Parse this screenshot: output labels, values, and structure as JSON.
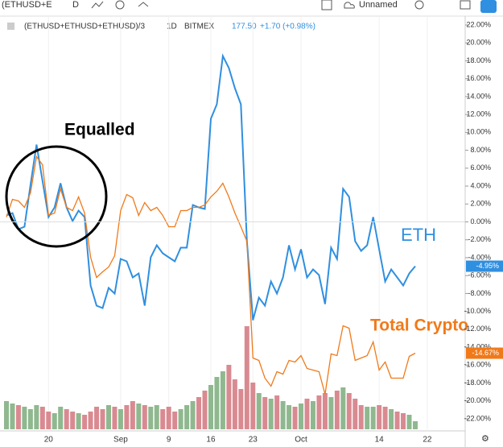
{
  "toolbar": {
    "symbol": "(ETHUSD+E",
    "interval": "D",
    "layout": "Unnamed"
  },
  "chart_data": {
    "type": "line",
    "legend_info": {
      "symbol": "(ETHUSD+ETHUSD+ETHUSD)/3",
      "interval": "1D",
      "exchange": "BITMEX",
      "price": "177.50",
      "change": "+1.70 (+0.98%)"
    },
    "annotations": {
      "circle_label": "Equalled",
      "eth_label": "ETH",
      "total_label": "Total Crypto"
    },
    "categories": [
      null,
      null,
      null,
      null,
      null,
      null,
      null,
      "20",
      null,
      null,
      null,
      null,
      null,
      null,
      null,
      null,
      null,
      null,
      null,
      "Sep",
      null,
      null,
      null,
      null,
      null,
      null,
      null,
      "9",
      null,
      null,
      null,
      null,
      null,
      null,
      "16",
      null,
      null,
      null,
      null,
      null,
      null,
      "23",
      null,
      null,
      null,
      null,
      null,
      null,
      null,
      "Oct",
      null,
      null,
      null,
      null,
      null,
      null,
      null,
      null,
      null,
      null,
      null,
      null,
      "14",
      null,
      null,
      null,
      null,
      null,
      null,
      null,
      "22"
    ],
    "series": [
      {
        "name": "ETH",
        "color": "#2f8fe0",
        "last_label": "-4.95%",
        "values": [
          0.72,
          0.99,
          -0.81,
          -0.54,
          4.14,
          8.64,
          4.59,
          0.54,
          1.62,
          4.32,
          1.62,
          0.09,
          1.26,
          0.54,
          -7.11,
          -9.36,
          -9.63,
          -7.38,
          -8.01,
          -4.14,
          -4.41,
          -6.21,
          -5.76,
          -9.36,
          -3.96,
          -2.61,
          -3.51,
          -3.96,
          -4.41,
          -2.88,
          -2.88,
          1.89,
          1.62,
          1.44,
          11.52,
          13.14,
          18.54,
          17.19,
          14.94,
          13.14,
          -2.16,
          -10.98,
          -8.46,
          -9.36,
          -6.66,
          -8.01,
          -6.21,
          -2.61,
          -5.31,
          -3.06,
          -6.21,
          -5.31,
          -5.94,
          -9.18,
          -2.88,
          -4.14,
          3.69,
          2.79,
          -2.16,
          -3.24,
          -2.61,
          0.54,
          -3.06,
          -6.66,
          -5.31,
          -6.21,
          -7.11,
          -5.76,
          -4.95,
          null,
          null
        ]
      },
      {
        "name": "Total Crypto",
        "color": "#f07a1a",
        "last_label": "-14.67%",
        "values": [
          0.54,
          2.52,
          2.34,
          1.62,
          3.24,
          7.29,
          6.39,
          0.72,
          0.99,
          3.69,
          1.62,
          1.26,
          2.79,
          0.99,
          -3.96,
          -6.21,
          -5.58,
          -5.04,
          -3.78,
          1.26,
          3.06,
          2.7,
          0.72,
          2.16,
          1.26,
          1.62,
          0.72,
          -0.54,
          -0.54,
          1.26,
          1.26,
          1.62,
          1.62,
          1.89,
          2.79,
          3.42,
          4.32,
          2.79,
          0.99,
          -0.54,
          -2.16,
          -15.21,
          -15.48,
          -17.46,
          -18.36,
          -16.74,
          -17.01,
          -15.48,
          -15.66,
          -14.94,
          -16.38,
          -16.56,
          -16.74,
          -19.26,
          -14.76,
          -14.94,
          -11.61,
          -11.88,
          -15.48,
          -15.21,
          -14.94,
          -13.41,
          -16.56,
          -15.66,
          -17.46,
          -17.46,
          -17.46,
          -15.03,
          -14.67,
          null,
          null
        ]
      }
    ],
    "volume": [
      35,
      32,
      30,
      28,
      25,
      30,
      28,
      22,
      20,
      28,
      25,
      22,
      20,
      18,
      22,
      28,
      25,
      30,
      28,
      25,
      30,
      35,
      32,
      30,
      28,
      30,
      25,
      28,
      22,
      25,
      30,
      35,
      40,
      48,
      55,
      65,
      72,
      80,
      62,
      50,
      128,
      58,
      45,
      40,
      38,
      42,
      35,
      30,
      28,
      32,
      38,
      35,
      42,
      45,
      40,
      48,
      52,
      45,
      38,
      30,
      28,
      28,
      30,
      28,
      25,
      22,
      20,
      18,
      10,
      null,
      null
    ],
    "vlim": [
      0,
      140
    ],
    "volume_up_color": "#8fb88f",
    "volume_down_color": "#d98a91",
    "ylim": [
      -22,
      22
    ],
    "yticks": [
      {
        "value": 22,
        "label": "22.00%"
      },
      {
        "value": 20,
        "label": "20.00%"
      },
      {
        "value": 18,
        "label": "18.00%"
      },
      {
        "value": 16,
        "label": "16.00%"
      },
      {
        "value": 14,
        "label": "14.00%"
      },
      {
        "value": 12,
        "label": "12.00%"
      },
      {
        "value": 10,
        "label": "10.00%"
      },
      {
        "value": 8,
        "label": "8.00%"
      },
      {
        "value": 6,
        "label": "6.00%"
      },
      {
        "value": 4,
        "label": "4.00%"
      },
      {
        "value": 2,
        "label": "2.00%"
      },
      {
        "value": 0,
        "label": "0.00%"
      },
      {
        "value": -2,
        "label": "-2.00%"
      },
      {
        "value": -4,
        "label": "-4.00%"
      },
      {
        "value": -6,
        "label": "-6.00%"
      },
      {
        "value": -8,
        "label": "-8.00%"
      },
      {
        "value": -10,
        "label": "-10.00%"
      },
      {
        "value": -12,
        "label": "-12.00%"
      },
      {
        "value": -14,
        "label": "-14.00%"
      },
      {
        "value": -16,
        "label": "-16.00%"
      },
      {
        "value": -18,
        "label": "-18.00%"
      },
      {
        "value": -20,
        "label": "-20.00%"
      },
      {
        "value": -22,
        "label": "-22.00%"
      }
    ],
    "grid": false,
    "zero_line": true
  }
}
